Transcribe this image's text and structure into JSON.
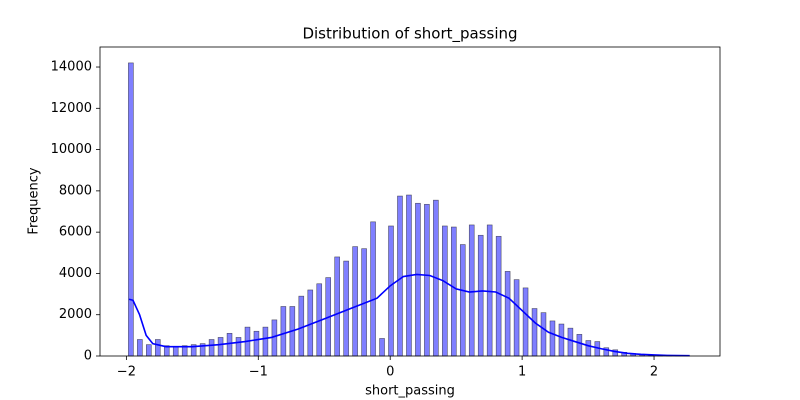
{
  "chart_data": {
    "type": "histogram",
    "title": "Distribution of short_passing",
    "xlabel": "short_passing",
    "ylabel": "Frequency",
    "bins": [
      -2,
      -1.932,
      -1.864,
      -1.796,
      -1.728,
      -1.66,
      -1.592,
      -1.524,
      -1.456,
      -1.388,
      -1.32,
      -1.252,
      -1.184,
      -1.116,
      -1.048,
      -0.98,
      -0.912,
      -0.844,
      -0.776,
      -0.708,
      -0.64,
      -0.572,
      -0.504,
      -0.436,
      -0.368,
      -0.3,
      -0.232,
      -0.164,
      -0.096,
      -0.028,
      0.04,
      0.108,
      0.176,
      0.244,
      0.312,
      0.38,
      0.448,
      0.516,
      0.584,
      0.652,
      0.72,
      0.788,
      0.856,
      0.924,
      0.992,
      1.06,
      1.128,
      1.196,
      1.264,
      1.332,
      1.4,
      1.468,
      1.536,
      1.604,
      1.672,
      1.74,
      1.808,
      1.876,
      1.944,
      2.012,
      2.08,
      2.148,
      2.216,
      2.284
    ],
    "values": [
      14200,
      800,
      550,
      800,
      500,
      450,
      500,
      550,
      600,
      800,
      900,
      1100,
      900,
      1400,
      1200,
      1400,
      1750,
      2400,
      2400,
      2900,
      3200,
      3500,
      3800,
      4800,
      4600,
      5300,
      5200,
      6500,
      850,
      6300,
      7750,
      7800,
      7400,
      7350,
      7550,
      6300,
      6250,
      5400,
      6350,
      5850,
      6350,
      5800,
      4100,
      3700,
      3300,
      2300,
      2100,
      1700,
      1550,
      1350,
      1050,
      750,
      700,
      400,
      300,
      180,
      120,
      80,
      50,
      30,
      20,
      15,
      10
    ],
    "color": "#0000ff",
    "kde": {
      "color": "#0000ff",
      "x": [
        -1.98,
        -1.95,
        -1.9,
        -1.85,
        -1.8,
        -1.7,
        -1.5,
        -1.3,
        -1.1,
        -0.9,
        -0.7,
        -0.5,
        -0.3,
        -0.1,
        0,
        0.1,
        0.2,
        0.3,
        0.4,
        0.5,
        0.6,
        0.7,
        0.8,
        0.9,
        1.0,
        1.1,
        1.2,
        1.3,
        1.4,
        1.5,
        1.6,
        1.7,
        1.8,
        1.9,
        2.0,
        2.1,
        2.27
      ],
      "values": [
        2750,
        2700,
        2000,
        1000,
        600,
        450,
        450,
        550,
        700,
        900,
        1300,
        1800,
        2300,
        2800,
        3400,
        3850,
        3950,
        3900,
        3650,
        3250,
        3100,
        3150,
        3100,
        2800,
        2200,
        1600,
        1150,
        900,
        700,
        500,
        350,
        220,
        130,
        80,
        50,
        30,
        15
      ]
    },
    "xlim": [
      -2.2,
      2.5
    ],
    "ylim": [
      0,
      14970
    ],
    "xticks": [
      {
        "value": -2,
        "label": "−2"
      },
      {
        "value": -1,
        "label": "−1"
      },
      0,
      1,
      2
    ],
    "yticks": [
      0,
      2000,
      4000,
      6000,
      8000,
      10000,
      12000,
      14000
    ]
  }
}
